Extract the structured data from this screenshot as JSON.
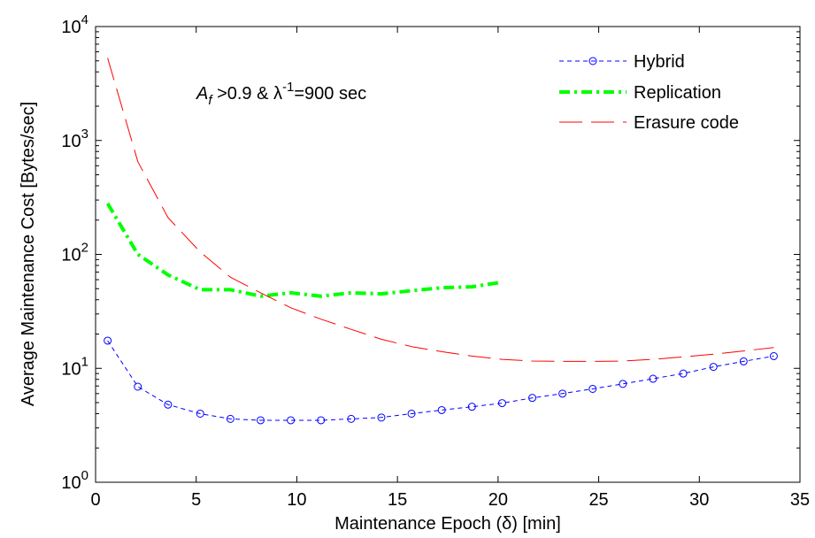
{
  "chart_data": {
    "type": "line",
    "title": "",
    "xlabel": "Maintenance Epoch (δ) [min]",
    "ylabel": "Average Maintenance Cost [Bytes/sec]",
    "xlim": [
      0,
      35
    ],
    "ylim": [
      1,
      10000
    ],
    "yscale": "log",
    "grid": false,
    "legend_position": "top-right",
    "x_ticks": [
      0,
      5,
      10,
      15,
      20,
      25,
      30,
      35
    ],
    "x_tick_labels": [
      "0",
      "5",
      "10",
      "15",
      "20",
      "25",
      "30",
      "35"
    ],
    "y_ticks": [
      1,
      10,
      100,
      1000,
      10000
    ],
    "y_tick_base": "10",
    "y_tick_exponents": [
      "0",
      "1",
      "2",
      "3",
      "4"
    ],
    "annotation": {
      "af_symbol": "A",
      "af_sub": "f",
      "af_rest": " >0.9 & ",
      "lambda_symbol": "λ",
      "lambda_sup": "-1",
      "lambda_rest": "=900 sec"
    },
    "series": [
      {
        "name": "Hybrid",
        "color": "#0000ff",
        "style": "dashed-circle-markers",
        "x": [
          0.6,
          2.1,
          3.6,
          5.2,
          6.7,
          8.2,
          9.7,
          11.2,
          12.7,
          14.2,
          15.7,
          17.2,
          18.7,
          20.2,
          21.7,
          23.2,
          24.7,
          26.2,
          27.7,
          29.2,
          30.7,
          32.2,
          33.7
        ],
        "values": [
          17.5,
          6.9,
          4.8,
          4.0,
          3.6,
          3.5,
          3.5,
          3.5,
          3.6,
          3.7,
          4.0,
          4.3,
          4.6,
          4.95,
          5.5,
          6.0,
          6.6,
          7.3,
          8.1,
          9.0,
          10.3,
          11.5,
          12.8
        ]
      },
      {
        "name": "Replication",
        "color": "#00ff00",
        "style": "dash-dot-thick",
        "x": [
          0.6,
          2.1,
          3.6,
          5.2,
          6.7,
          8.2,
          9.7,
          11.2,
          12.7,
          14.2,
          15.7,
          17.2,
          18.7,
          20.2
        ],
        "values": [
          280,
          100,
          66,
          49,
          49,
          43,
          46,
          43,
          46,
          45,
          48,
          51,
          52,
          57
        ]
      },
      {
        "name": "Erasure code",
        "color": "#ff0000",
        "style": "long-dash",
        "x": [
          0.6,
          2.1,
          3.6,
          5.2,
          6.7,
          8.2,
          9.7,
          11.2,
          12.7,
          14.2,
          15.7,
          17.2,
          18.7,
          20.2,
          21.7,
          23.2,
          24.7,
          26.2,
          27.7,
          29.2,
          30.7,
          32.2,
          33.7
        ],
        "values": [
          5300,
          650,
          210,
          105,
          63,
          46,
          34,
          27,
          22,
          18,
          15.5,
          14,
          12.8,
          12,
          11.6,
          11.5,
          11.5,
          11.6,
          12,
          12.6,
          13.3,
          14.2,
          15.2
        ]
      }
    ]
  }
}
